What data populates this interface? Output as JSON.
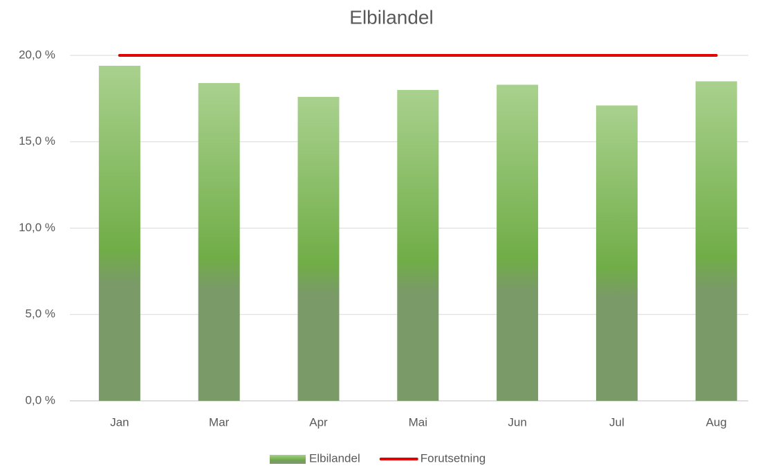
{
  "chart_data": {
    "type": "bar",
    "title": "Elbilandel",
    "categories": [
      "Jan",
      "Mar",
      "Apr",
      "Mai",
      "Jun",
      "Jul",
      "Aug"
    ],
    "series": [
      {
        "name": "Elbilandel",
        "type": "bar",
        "color": "#70ad47",
        "values": [
          19.4,
          18.4,
          17.6,
          18.0,
          18.3,
          17.1,
          18.5
        ]
      },
      {
        "name": "Forutsetning",
        "type": "line",
        "color": "#e00000",
        "values": [
          20,
          20,
          20,
          20,
          20,
          20,
          20
        ]
      }
    ],
    "ylim": [
      0,
      20
    ],
    "yticks": [
      {
        "value": 0,
        "label": "0,0 %"
      },
      {
        "value": 5,
        "label": "5,0 %"
      },
      {
        "value": 10,
        "label": "10,0 %"
      },
      {
        "value": 15,
        "label": "15,0 %"
      },
      {
        "value": 20,
        "label": "20,0 %"
      }
    ],
    "grid": true,
    "legend": "bottom"
  }
}
